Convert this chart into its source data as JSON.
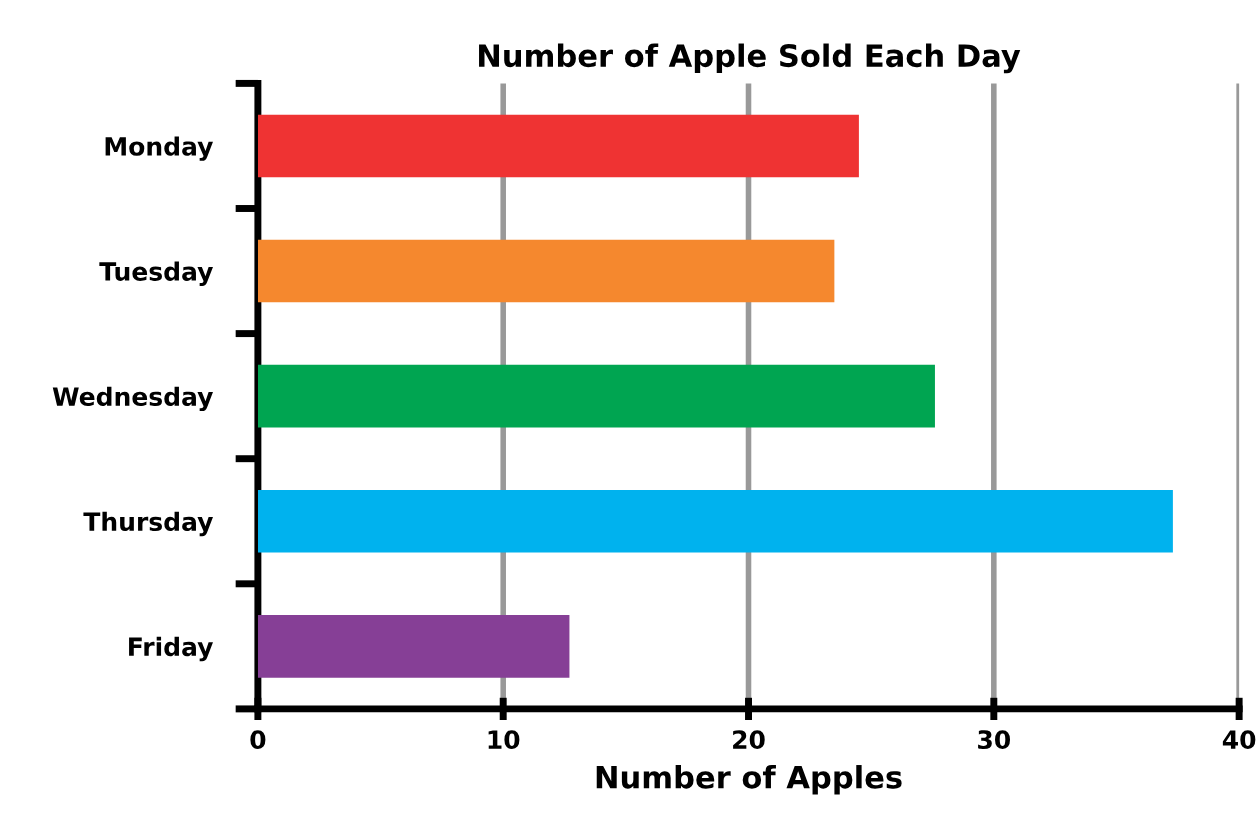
{
  "chart_data": {
    "type": "bar",
    "orientation": "horizontal",
    "title": "Number of Apple Sold Each Day",
    "xlabel": "Number of Apples",
    "categories": [
      "Monday",
      "Tuesday",
      "Wednesday",
      "Thursday",
      "Friday"
    ],
    "values": [
      24.5,
      23.5,
      27.6,
      37.3,
      12.7
    ],
    "colors": [
      "#ef3333",
      "#f5882e",
      "#00a551",
      "#00b2ee",
      "#863f96"
    ],
    "xlim": [
      0,
      40
    ],
    "xticks": [
      0,
      10,
      20,
      30,
      40
    ],
    "grid": "x"
  }
}
